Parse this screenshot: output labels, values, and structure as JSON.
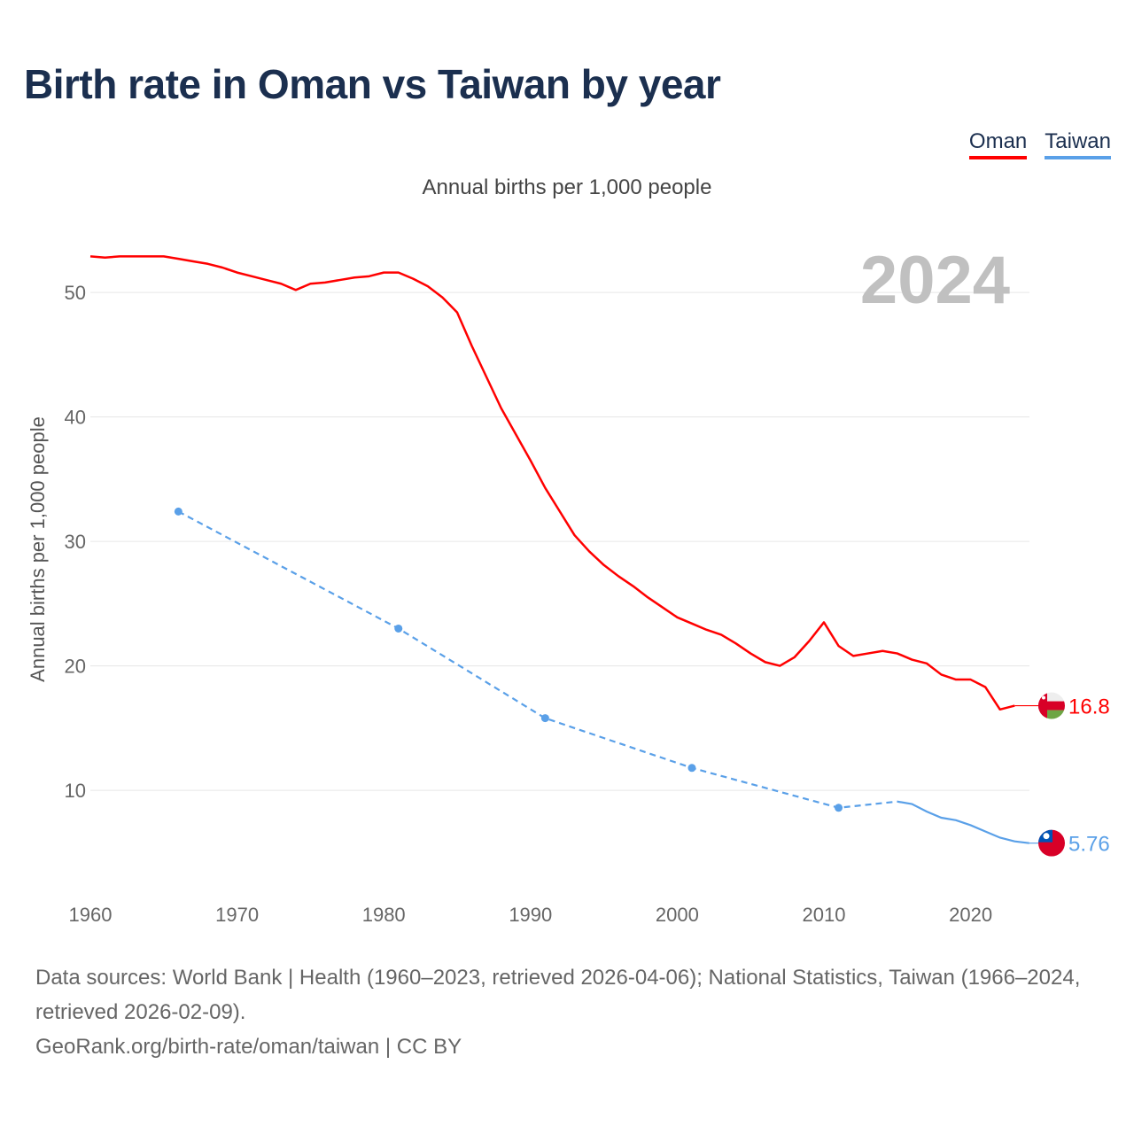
{
  "chart_data": {
    "type": "line",
    "title": "Birth rate in Oman vs Taiwan by year",
    "subtitle": "Annual births per 1,000 people",
    "ylabel": "Annual births per 1,000 people",
    "xlabel": "",
    "xlim": [
      1960,
      2024
    ],
    "ylim": [
      0,
      55
    ],
    "x_ticks": [
      "1960",
      "1970",
      "1980",
      "1990",
      "2000",
      "2010",
      "2020"
    ],
    "y_ticks": [
      "10",
      "20",
      "30",
      "40",
      "50"
    ],
    "grid": true,
    "legend_placement": "top-right",
    "year_watermark": "2024",
    "series": [
      {
        "name": "Oman",
        "color": "#ff0000",
        "end_label": "16.8",
        "x": [
          1960,
          1961,
          1962,
          1963,
          1964,
          1965,
          1966,
          1967,
          1968,
          1969,
          1970,
          1971,
          1972,
          1973,
          1974,
          1975,
          1976,
          1977,
          1978,
          1979,
          1980,
          1981,
          1982,
          1983,
          1984,
          1985,
          1986,
          1987,
          1988,
          1989,
          1990,
          1991,
          1992,
          1993,
          1994,
          1995,
          1996,
          1997,
          1998,
          1999,
          2000,
          2001,
          2002,
          2003,
          2004,
          2005,
          2006,
          2007,
          2008,
          2009,
          2010,
          2011,
          2012,
          2013,
          2014,
          2015,
          2016,
          2017,
          2018,
          2019,
          2020,
          2021,
          2022,
          2023
        ],
        "values": [
          52.9,
          52.8,
          52.9,
          52.9,
          52.9,
          52.9,
          52.7,
          52.5,
          52.3,
          52.0,
          51.6,
          51.3,
          51.0,
          50.7,
          50.2,
          50.7,
          50.8,
          51.0,
          51.2,
          51.3,
          51.6,
          51.6,
          51.1,
          50.5,
          49.6,
          48.4,
          45.7,
          43.2,
          40.7,
          38.6,
          36.5,
          34.3,
          32.4,
          30.5,
          29.2,
          28.1,
          27.2,
          26.4,
          25.5,
          24.7,
          23.9,
          23.4,
          22.9,
          22.5,
          21.8,
          21.0,
          20.3,
          20.0,
          20.7,
          22.0,
          23.5,
          21.6,
          20.8,
          21.0,
          21.2,
          21.0,
          20.5,
          20.2,
          19.3,
          18.9,
          18.9,
          18.3,
          16.5,
          16.8
        ]
      },
      {
        "name": "Taiwan",
        "color": "#5aa0e8",
        "end_label": "5.76",
        "x": [
          1966,
          1981,
          1991,
          2001,
          2011,
          2015,
          2016,
          2017,
          2018,
          2019,
          2020,
          2021,
          2022,
          2023,
          2024
        ],
        "values": [
          32.4,
          23.0,
          15.8,
          11.8,
          8.6,
          9.1,
          8.9,
          8.3,
          7.8,
          7.6,
          7.2,
          6.7,
          6.2,
          5.9,
          5.76
        ]
      }
    ]
  },
  "footer": {
    "sources": "Data sources: World Bank | Health (1960–2023, retrieved 2026-04-06); National Statistics, Taiwan (1966–2024, retrieved 2026-02-09).",
    "attribution": "GeoRank.org/birth-rate/oman/taiwan | CC BY"
  }
}
